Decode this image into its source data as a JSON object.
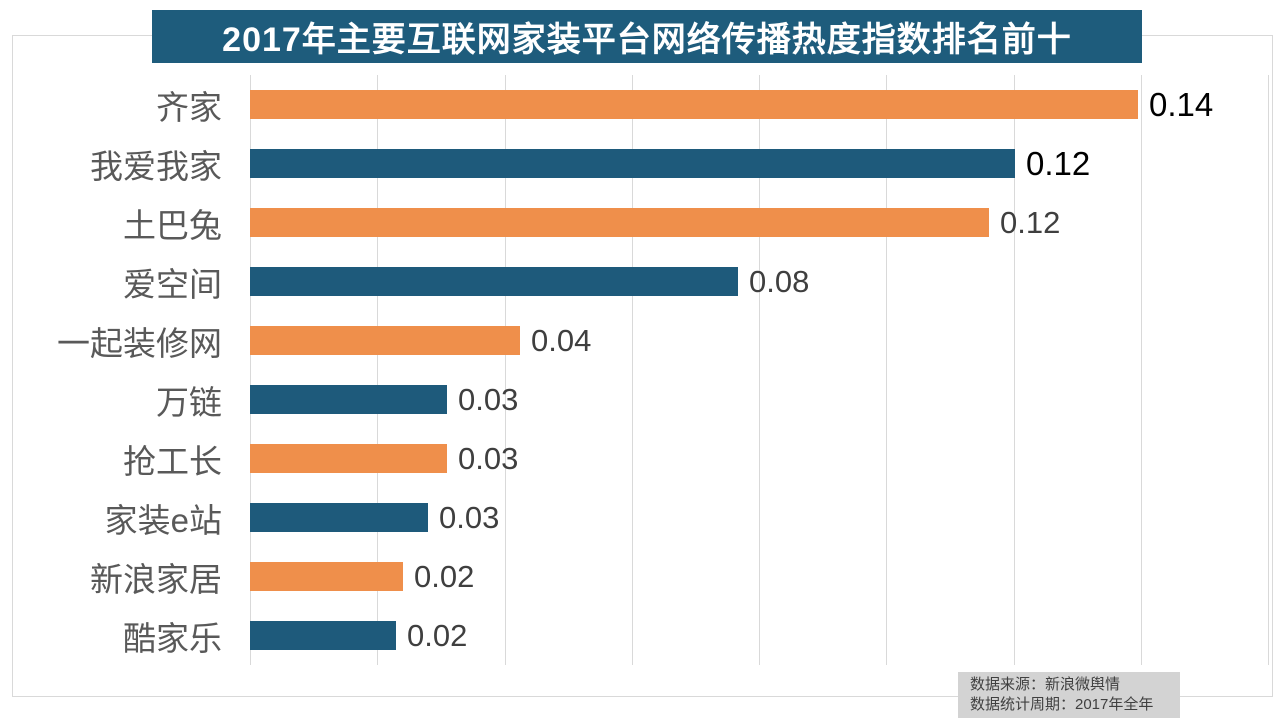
{
  "title": {
    "text": "2017年主要互联网家装平台网络传播热度指数排名前十"
  },
  "chart_data": {
    "type": "bar",
    "orientation": "horizontal",
    "title": "2017年主要互联网家装平台网络传播热度指数排名前十",
    "categories": [
      "齐家",
      "我爱我家",
      "土巴兔",
      "爱空间",
      "一起装修网",
      "万链",
      "抢工长",
      "家装e站",
      "新浪家居",
      "酷家乐"
    ],
    "values": [
      0.14,
      0.12,
      0.12,
      0.08,
      0.04,
      0.03,
      0.03,
      0.03,
      0.02,
      0.02
    ],
    "value_labels": [
      "0.14",
      "0.12",
      "0.12",
      "0.08",
      "0.04",
      "0.03",
      "0.03",
      "0.03",
      "0.02",
      "0.02"
    ],
    "bar_lengths_estimated": [
      0.1395,
      0.1203,
      0.1162,
      0.0767,
      0.0425,
      0.031,
      0.031,
      0.028,
      0.024,
      0.023
    ],
    "xlim": [
      0,
      0.16
    ],
    "gridline_interval": 0.02,
    "gridline_count": 9,
    "bar_color_odd_rows": "#EF8F4B",
    "bar_color_even_rows": "#1E5A7B",
    "emphasized_label_indices": [
      0,
      1
    ],
    "xlabel": "",
    "ylabel": "",
    "legend": "none",
    "grid": "vertical-only"
  },
  "colors": {
    "title_bg": "#1E5C7C",
    "title_text": "#FFFFFF",
    "orange": "#EF8F4B",
    "blue": "#1E5A7B",
    "gridline": "#D9D9D9",
    "frame_border": "#D9D9D9",
    "category_text": "#595959",
    "value_text": "#3F3F3F",
    "value_text_emphasis": "#000000",
    "footer_bg": "#D3D3D3",
    "footer_text": "#404040"
  },
  "footer": {
    "source": "数据来源：新浪微舆情",
    "period": "数据统计周期：2017年全年"
  }
}
